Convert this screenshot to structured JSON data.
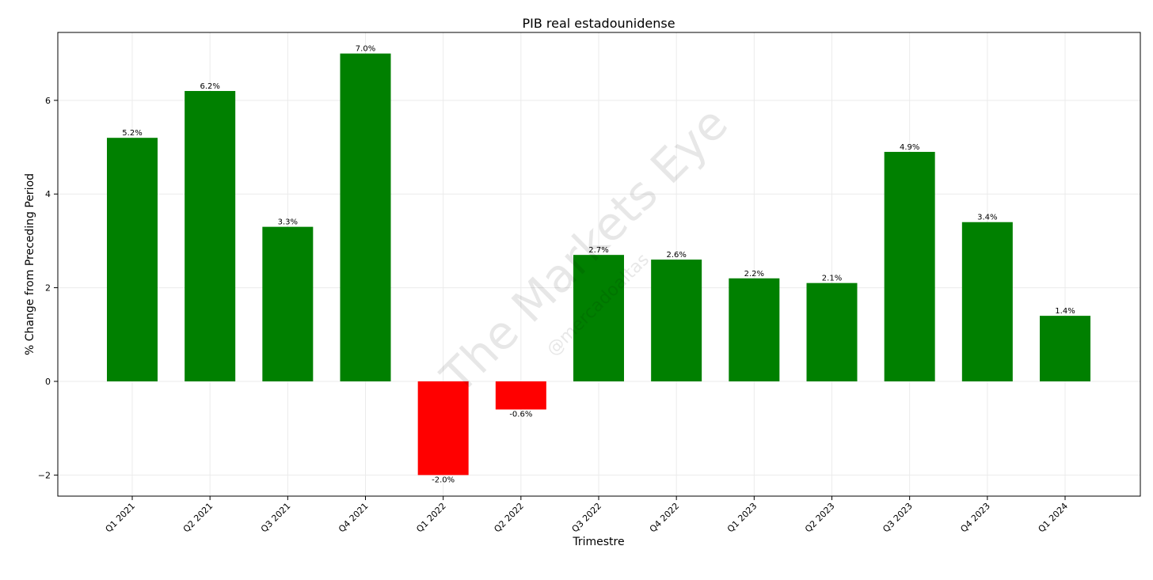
{
  "chart_data": {
    "type": "bar",
    "title": "PIB real estadounidense",
    "xlabel": "Trimestre",
    "ylabel": "% Change from Preceding Period",
    "categories": [
      "Q1 2021",
      "Q2 2021",
      "Q3 2021",
      "Q4 2021",
      "Q1 2022",
      "Q2 2022",
      "Q3 2022",
      "Q4 2022",
      "Q1 2023",
      "Q2 2023",
      "Q3 2023",
      "Q4 2023",
      "Q1 2024"
    ],
    "values": [
      5.2,
      6.2,
      3.3,
      7.0,
      -2.0,
      -0.6,
      2.7,
      2.6,
      2.2,
      2.1,
      4.9,
      3.4,
      1.4
    ],
    "data_labels": [
      "5.2%",
      "6.2%",
      "3.3%",
      "7.0%",
      "-2.0%",
      "-0.6%",
      "2.7%",
      "2.6%",
      "2.2%",
      "2.1%",
      "4.9%",
      "3.4%",
      "1.4%"
    ],
    "ylim": [
      -2.45,
      7.45
    ],
    "yticks": [
      -2,
      0,
      2,
      4,
      6
    ],
    "ytick_labels": [
      "−2",
      "0",
      "2",
      "4",
      "6"
    ],
    "grid": true,
    "colors": {
      "positive": "#008000",
      "negative": "#ff0000",
      "grid": "#ebebeb"
    },
    "watermark": {
      "text": "The Markets Eye",
      "subtext": "@mercadoaltas"
    }
  }
}
